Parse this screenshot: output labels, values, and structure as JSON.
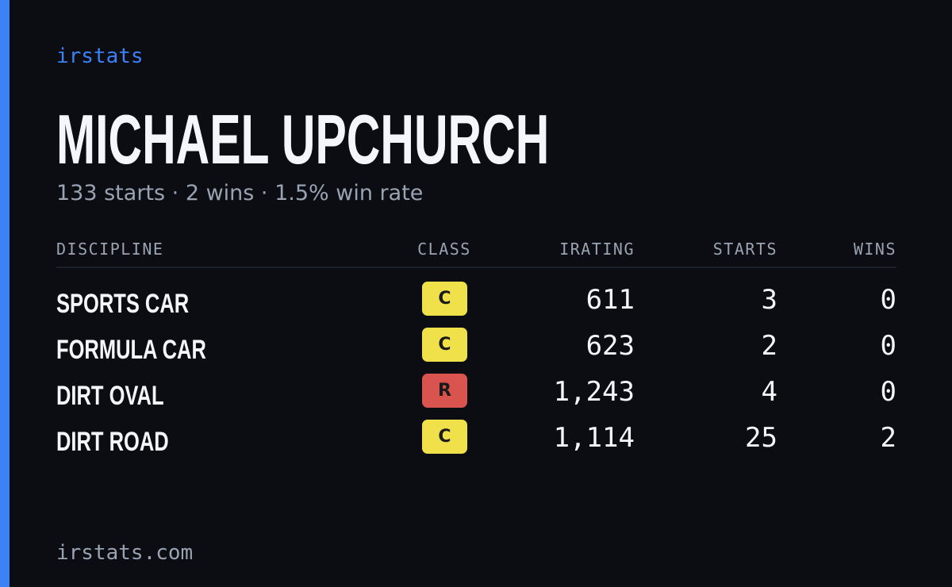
{
  "header": {
    "brand": "irstats",
    "name": "MICHAEL UPCHURCH",
    "subtitle": "133 starts · 2 wins · 1.5% win rate"
  },
  "table": {
    "columns": [
      "DISCIPLINE",
      "CLASS",
      "IRATING",
      "STARTS",
      "WINS"
    ],
    "rows": [
      [
        "SPORTS CAR",
        "C",
        "611",
        "3",
        "0"
      ],
      [
        "FORMULA CAR",
        "C",
        "623",
        "2",
        "0"
      ],
      [
        "DIRT OVAL",
        "R",
        "1,243",
        "4",
        "0"
      ],
      [
        "DIRT ROAD",
        "C",
        "1,114",
        "25",
        "2"
      ]
    ],
    "class_colors": [
      "#f0e14a",
      "#f0e14a",
      "#d9534f",
      "#f0e14a"
    ]
  },
  "footer": {
    "url": "irstats.com"
  }
}
